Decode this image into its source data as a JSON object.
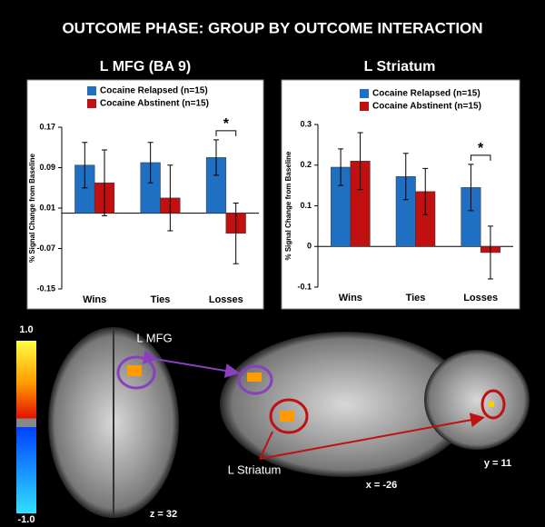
{
  "title": "OUTCOME PHASE: GROUP BY OUTCOME INTERACTION",
  "chart_data": [
    {
      "type": "bar",
      "title": "L MFG (BA 9)",
      "ylabel": "% Signal Change from Baseline",
      "categories": [
        "Wins",
        "Ties",
        "Losses"
      ],
      "series": [
        {
          "name": "Cocaine Relapsed (n=15)",
          "color": "#1f6fc2",
          "values": [
            0.095,
            0.1,
            0.11
          ],
          "errors": [
            0.045,
            0.04,
            0.035
          ]
        },
        {
          "name": "Cocaine Abstinent (n=15)",
          "color": "#c01010",
          "values": [
            0.06,
            0.03,
            -0.04
          ],
          "errors": [
            0.065,
            0.065,
            0.06
          ]
        }
      ],
      "ylim": [
        -0.15,
        0.17
      ],
      "yticks": [
        -0.15,
        -0.07,
        0.01,
        0.09,
        0.17
      ],
      "annotation": "*"
    },
    {
      "type": "bar",
      "title": "L Striatum",
      "ylabel": "% Signal Change from Baseline",
      "categories": [
        "Wins",
        "Ties",
        "Losses"
      ],
      "series": [
        {
          "name": "Cocaine Relapsed (n=15)",
          "color": "#1f6fc2",
          "values": [
            0.195,
            0.172,
            0.145
          ],
          "errors": [
            0.045,
            0.057,
            0.057
          ]
        },
        {
          "name": "Cocaine Abstinent (n=15)",
          "color": "#c01010",
          "values": [
            0.21,
            0.135,
            -0.015
          ],
          "errors": [
            0.07,
            0.057,
            0.065
          ]
        }
      ],
      "ylim": [
        -0.1,
        0.3
      ],
      "yticks": [
        -0.1,
        0,
        0.1,
        0.2,
        0.3
      ],
      "annotation": "*"
    }
  ],
  "brain_panel": {
    "mfg_label": "L MFG",
    "striatum_label": "L Striatum",
    "slices": [
      "z = 32",
      "x = -26",
      "y = 11"
    ],
    "colorbar": [
      "1.0",
      "-1.0"
    ]
  }
}
